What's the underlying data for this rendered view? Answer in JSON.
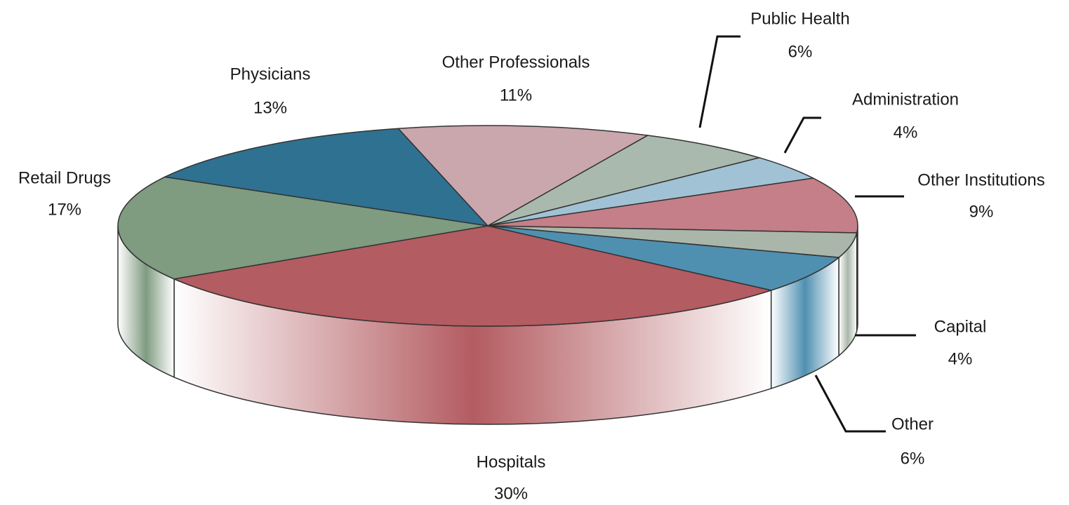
{
  "chart_data": {
    "type": "pie",
    "categories": [
      "Hospitals",
      "Retail Drugs",
      "Physicians",
      "Other Professionals",
      "Public Health",
      "Administration",
      "Other Institutions",
      "Capital",
      "Other"
    ],
    "values": [
      30,
      17,
      13,
      11,
      6,
      4,
      9,
      4,
      6
    ],
    "value_labels": [
      "30%",
      "17%",
      "13%",
      "11%",
      "6%",
      "4%",
      "9%",
      "4%",
      "6%"
    ],
    "colors": [
      "#b35c61",
      "#7f9b80",
      "#2f7191",
      "#c9a7ad",
      "#a9b9ae",
      "#a1c2d4",
      "#c47f88",
      "#aab6a9",
      "#4f90b1"
    ]
  }
}
